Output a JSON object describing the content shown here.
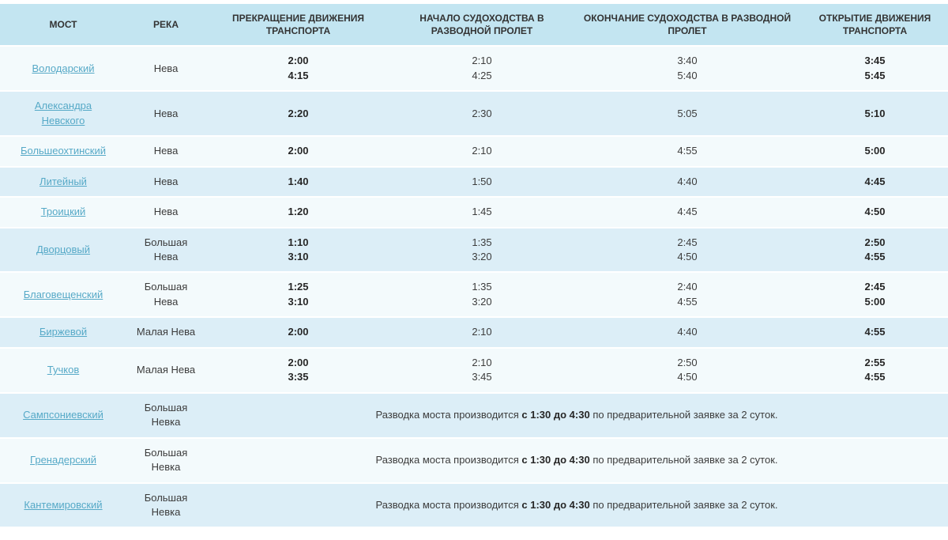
{
  "colors": {
    "page_bg": "#ffffff",
    "header_bg": "#c3e5f1",
    "row_bg": "#f3fafc",
    "row_alt_bg": "#dceef7",
    "link": "#56a9c7",
    "text": "#3c3c3c",
    "time_bold": "#262626"
  },
  "table": {
    "columns": [
      {
        "label": "МОСТ"
      },
      {
        "label": "РЕКА"
      },
      {
        "label": "ПРЕКРАЩЕНИЕ ДВИЖЕНИЯ\nТРАНСПОРТА"
      },
      {
        "label": "НАЧАЛО СУДОХОДСТВА В\nРАЗВОДНОЙ ПРОЛЕТ"
      },
      {
        "label": "ОКОНЧАНИЕ СУДОХОДСТВА В\nРАЗВОДНОЙ ПРОЛЕТ"
      },
      {
        "label": "ОТКРЫТИЕ ДВИЖЕНИЯ\nТРАНСПОРТА"
      }
    ],
    "rows": [
      {
        "bridge": "Володарский",
        "river": "Нева",
        "traffic_stop": [
          "2:00",
          "4:15"
        ],
        "nav_start": [
          "2:10",
          "4:25"
        ],
        "nav_end": [
          "3:40",
          "5:40"
        ],
        "traffic_open": [
          "3:45",
          "5:45"
        ]
      },
      {
        "bridge": [
          "Александра",
          "Невского"
        ],
        "river": "Нева",
        "traffic_stop": [
          "2:20"
        ],
        "nav_start": [
          "2:30"
        ],
        "nav_end": [
          "5:05"
        ],
        "traffic_open": [
          "5:10"
        ]
      },
      {
        "bridge": "Большеохтинский",
        "river": "Нева",
        "traffic_stop": [
          "2:00"
        ],
        "nav_start": [
          "2:10"
        ],
        "nav_end": [
          "4:55"
        ],
        "traffic_open": [
          "5:00"
        ]
      },
      {
        "bridge": "Литейный",
        "river": "Нева",
        "traffic_stop": [
          "1:40"
        ],
        "nav_start": [
          "1:50"
        ],
        "nav_end": [
          "4:40"
        ],
        "traffic_open": [
          "4:45"
        ]
      },
      {
        "bridge": "Троицкий",
        "river": "Нева",
        "traffic_stop": [
          "1:20"
        ],
        "nav_start": [
          "1:45"
        ],
        "nav_end": [
          "4:45"
        ],
        "traffic_open": [
          "4:50"
        ]
      },
      {
        "bridge": "Дворцовый",
        "river": [
          "Большая",
          "Нева"
        ],
        "traffic_stop": [
          "1:10",
          "3:10"
        ],
        "nav_start": [
          "1:35",
          "3:20"
        ],
        "nav_end": [
          "2:45",
          "4:50"
        ],
        "traffic_open": [
          "2:50",
          "4:55"
        ]
      },
      {
        "bridge": "Благовещенский",
        "river": [
          "Большая",
          "Нева"
        ],
        "traffic_stop": [
          "1:25",
          "3:10"
        ],
        "nav_start": [
          "1:35",
          "3:20"
        ],
        "nav_end": [
          "2:40",
          "4:55"
        ],
        "traffic_open": [
          "2:45",
          "5:00"
        ]
      },
      {
        "bridge": "Биржевой",
        "river": "Малая Нева",
        "traffic_stop": [
          "2:00"
        ],
        "nav_start": [
          "2:10"
        ],
        "nav_end": [
          "4:40"
        ],
        "traffic_open": [
          "4:55"
        ]
      },
      {
        "bridge": "Тучков",
        "river": "Малая Нева",
        "traffic_stop": [
          "2:00",
          "3:35"
        ],
        "nav_start": [
          "2:10",
          "3:45"
        ],
        "nav_end": [
          "2:50",
          "4:50"
        ],
        "traffic_open": [
          "2:55",
          "4:55"
        ]
      },
      {
        "bridge": "Сампсониевский",
        "river": [
          "Большая",
          "Невка"
        ],
        "note": {
          "prefix": "Разводка моста производится ",
          "bold": "с 1:30 до 4:30",
          "suffix": " по предварительной заявке за 2 суток."
        }
      },
      {
        "bridge": "Гренадерский",
        "river": [
          "Большая",
          "Невка"
        ],
        "note": {
          "prefix": "Разводка моста производится ",
          "bold": "с 1:30 до 4:30",
          "suffix": " по предварительной заявке за 2 суток."
        }
      },
      {
        "bridge": "Кантемировский",
        "river": [
          "Большая",
          "Невка"
        ],
        "note": {
          "prefix": "Разводка моста производится ",
          "bold": "с 1:30 до 4:30",
          "suffix": " по предварительной заявке за 2 суток."
        }
      }
    ]
  }
}
